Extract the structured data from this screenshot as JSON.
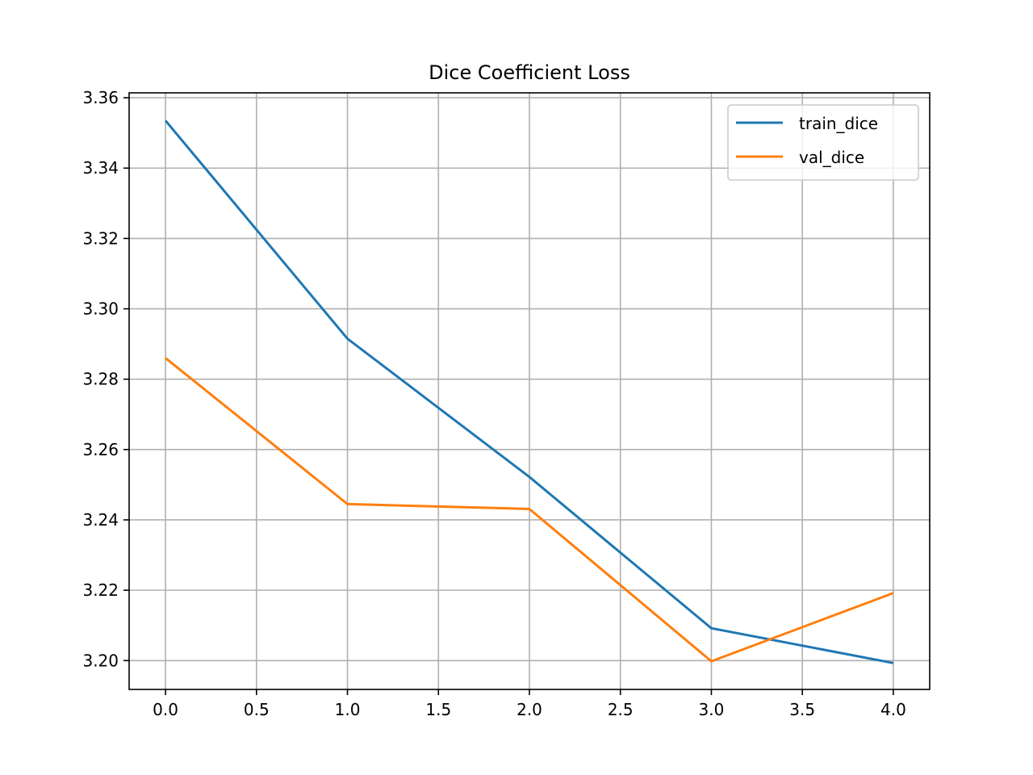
{
  "chart_data": {
    "type": "line",
    "title": "Dice Coefficient Loss",
    "xlabel": "",
    "ylabel": "",
    "x": [
      0,
      1,
      2,
      3,
      4
    ],
    "xlim": [
      -0.2,
      4.2
    ],
    "ylim": [
      3.1918,
      3.3614
    ],
    "xticks": [
      0,
      0.5,
      1,
      1.5,
      2,
      2.5,
      3,
      3.5,
      4
    ],
    "xtick_labels": [
      "0.0",
      "0.5",
      "1.0",
      "1.5",
      "2.0",
      "2.5",
      "3.0",
      "3.5",
      "4.0"
    ],
    "yticks": [
      3.2,
      3.22,
      3.24,
      3.26,
      3.28,
      3.3,
      3.32,
      3.34,
      3.36
    ],
    "ytick_labels": [
      "3.20",
      "3.22",
      "3.24",
      "3.26",
      "3.28",
      "3.30",
      "3.32",
      "3.34",
      "3.36"
    ],
    "grid": true,
    "legend": "top-right",
    "series": [
      {
        "name": "train_dice",
        "color": "#1f77b4",
        "values": [
          3.3535,
          3.2915,
          3.2522,
          3.2092,
          3.1993
        ]
      },
      {
        "name": "val_dice",
        "color": "#ff7f0e",
        "values": [
          3.286,
          3.2445,
          3.2431,
          3.1998,
          3.2192
        ]
      }
    ]
  }
}
